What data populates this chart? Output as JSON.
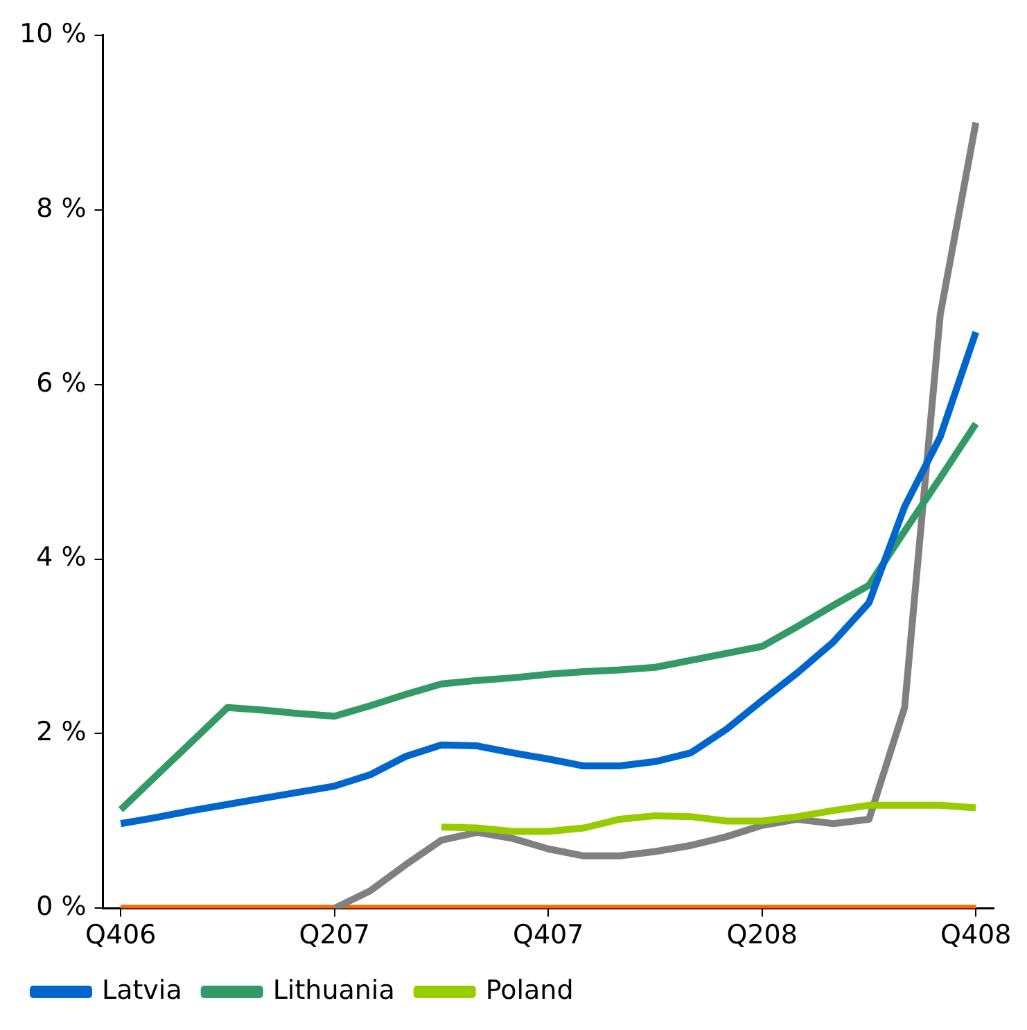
{
  "chart_data": {
    "type": "line",
    "categories": [
      "Q406",
      null,
      null,
      null,
      null,
      null,
      "Q207",
      null,
      null,
      null,
      null,
      null,
      "Q407",
      null,
      null,
      null,
      null,
      null,
      "Q208",
      null,
      null,
      null,
      null,
      null,
      "Q408"
    ],
    "ylim": [
      0,
      10
    ],
    "yticks": [
      {
        "value": 0,
        "label": "0 %"
      },
      {
        "value": 2,
        "label": "2 %"
      },
      {
        "value": 4,
        "label": "4 %"
      },
      {
        "value": 6,
        "label": "6 %"
      },
      {
        "value": 8,
        "label": "8 %"
      },
      {
        "value": 10,
        "label": "10 %"
      }
    ],
    "grid": false,
    "legend": "bottom",
    "marker": "none",
    "line_style": "solid",
    "series": [
      {
        "name": "Latvia",
        "color": "#0066cc",
        "values": [
          0.97,
          1.04,
          1.12,
          1.19,
          1.26,
          1.33,
          1.4,
          1.53,
          1.74,
          1.87,
          1.86,
          1.78,
          1.71,
          1.63,
          1.63,
          1.68,
          1.78,
          2.05,
          2.38,
          2.7,
          3.05,
          3.5,
          4.6,
          5.4,
          6.6
        ]
      },
      {
        "name": "Lithuania",
        "color": "#339966",
        "values": [
          1.13,
          1.52,
          1.91,
          2.3,
          2.27,
          2.23,
          2.2,
          2.32,
          2.45,
          2.57,
          2.61,
          2.64,
          2.68,
          2.71,
          2.73,
          2.76,
          2.84,
          2.92,
          3.0,
          3.23,
          3.47,
          3.7,
          4.32,
          4.93,
          5.55
        ]
      },
      {
        "name": "Poland",
        "color": "#99cc00",
        "values": [
          null,
          null,
          null,
          null,
          null,
          null,
          null,
          null,
          null,
          0.93,
          0.92,
          0.88,
          0.88,
          0.92,
          1.02,
          1.06,
          1.05,
          1.0,
          1.0,
          1.05,
          1.12,
          1.18,
          1.18,
          1.18,
          1.15
        ]
      },
      {
        "color": "#808080",
        "values": [
          null,
          null,
          null,
          null,
          null,
          null,
          0,
          0.2,
          0.5,
          0.78,
          0.87,
          0.8,
          0.68,
          0.6,
          0.6,
          0.65,
          0.72,
          0.82,
          0.95,
          1.02,
          0.97,
          1.02,
          2.3,
          6.8,
          9.0
        ]
      },
      {
        "color": "#ff6600",
        "values": [
          0,
          0,
          0,
          0,
          0,
          0,
          0,
          0,
          0,
          0,
          0,
          0,
          0,
          0,
          0,
          0,
          0,
          0,
          0,
          0,
          0,
          0,
          0,
          0,
          0
        ]
      }
    ]
  }
}
